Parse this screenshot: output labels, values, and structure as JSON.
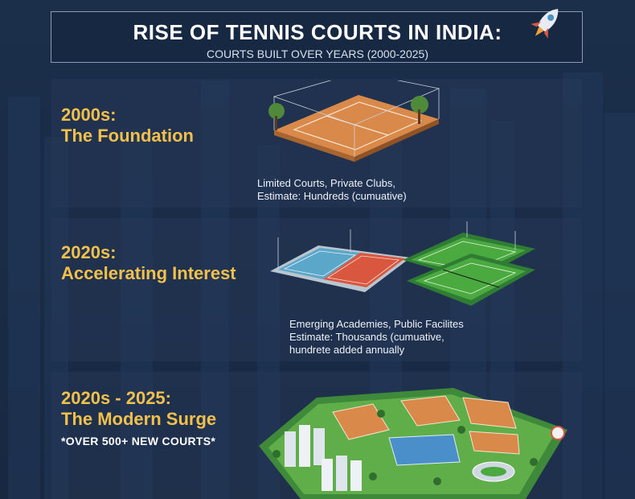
{
  "header": {
    "title": "RISE OF TENNIS COURTS IN INDIA:",
    "subtitle": "COURTS BUILT OVER YEARS (2000-2025)"
  },
  "sections": [
    {
      "era": "2000s:",
      "heading": "The Foundation",
      "caption_lines": [
        "Limited Courts, Private Clubs,",
        "Estimate: Hundreds (cumuative)"
      ]
    },
    {
      "era": "2020s:",
      "heading": "Accelerating Interest",
      "caption_lines": [
        "Emerging Academies, Public Facilites",
        "Estimate: Thousands (cumuative,",
        "hundrete added annually"
      ]
    },
    {
      "era": "2020s - 2025:",
      "heading": "The Modern Surge",
      "highlight": "*OVER 500+ NEW COURTS*"
    }
  ],
  "icons": [
    "rocket-icon"
  ],
  "colors": {
    "background": "#1b2e4a",
    "accent_gold": "#f3c04b",
    "clay": "#d98a4a",
    "hard_blue": "#5aa7c9",
    "hard_red": "#d9573f",
    "grass_green": "#3f9a3c"
  }
}
